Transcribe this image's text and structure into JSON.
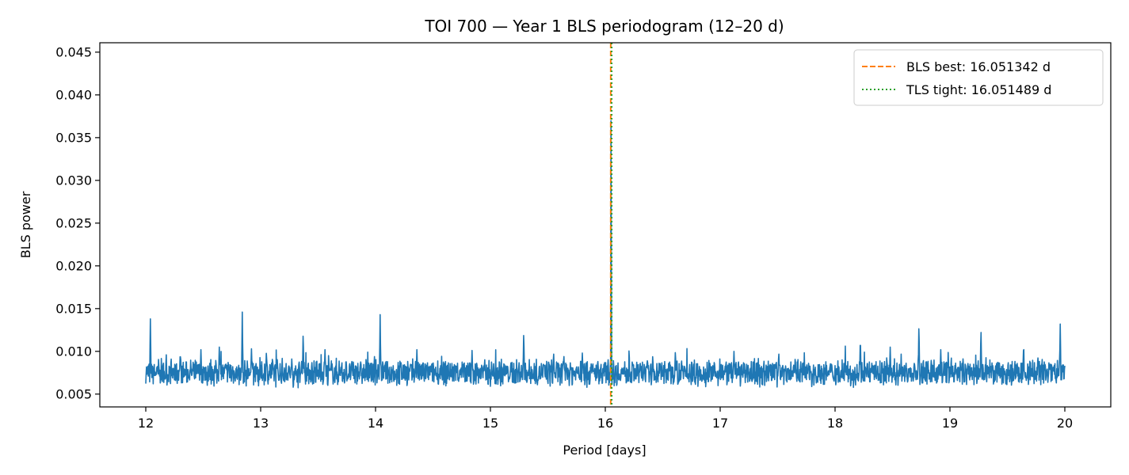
{
  "chart_data": {
    "type": "line",
    "title": "TOI 700 — Year 1 BLS periodogram (12–20 d)",
    "xlabel": "Period [days]",
    "ylabel": "BLS power",
    "xlim": [
      11.6,
      20.4
    ],
    "ylim": [
      0.0035,
      0.0461
    ],
    "xticks": [
      12,
      13,
      14,
      15,
      16,
      17,
      18,
      19,
      20
    ],
    "yticks": [
      0.005,
      0.01,
      0.015,
      0.02,
      0.025,
      0.03,
      0.035,
      0.04,
      0.045
    ],
    "ytick_labels": [
      "0.005",
      "0.010",
      "0.015",
      "0.020",
      "0.025",
      "0.030",
      "0.035",
      "0.040",
      "0.045"
    ],
    "grid": false,
    "legend_position": "top-right",
    "series": [
      {
        "name": "",
        "color": "#1f77b4",
        "x_range": [
          12,
          20
        ],
        "baseline": 0.0075,
        "noise_amplitude": 0.0015,
        "peaks": [
          {
            "x": 12.04,
            "y": 0.0138
          },
          {
            "x": 12.3,
            "y": 0.01
          },
          {
            "x": 12.48,
            "y": 0.0102
          },
          {
            "x": 12.64,
            "y": 0.0105
          },
          {
            "x": 12.84,
            "y": 0.0146
          },
          {
            "x": 12.92,
            "y": 0.0103
          },
          {
            "x": 13.05,
            "y": 0.0101
          },
          {
            "x": 13.37,
            "y": 0.0124
          },
          {
            "x": 13.56,
            "y": 0.0102
          },
          {
            "x": 14.04,
            "y": 0.0143
          },
          {
            "x": 14.36,
            "y": 0.0102
          },
          {
            "x": 14.84,
            "y": 0.0101
          },
          {
            "x": 15.29,
            "y": 0.0125
          },
          {
            "x": 15.55,
            "y": 0.01
          },
          {
            "x": 15.8,
            "y": 0.0098
          },
          {
            "x": 16.05,
            "y": 0.044
          },
          {
            "x": 16.61,
            "y": 0.0102
          },
          {
            "x": 17.12,
            "y": 0.01
          },
          {
            "x": 17.51,
            "y": 0.01
          },
          {
            "x": 18.22,
            "y": 0.0118
          },
          {
            "x": 18.48,
            "y": 0.0105
          },
          {
            "x": 18.73,
            "y": 0.0134
          },
          {
            "x": 18.92,
            "y": 0.0102
          },
          {
            "x": 19.27,
            "y": 0.0129
          },
          {
            "x": 19.64,
            "y": 0.0101
          },
          {
            "x": 19.96,
            "y": 0.0132
          }
        ]
      }
    ],
    "vlines": [
      {
        "name": "BLS best: 16.051342 d",
        "x": 16.051342,
        "color": "#ff7f0e",
        "style": "dashed"
      },
      {
        "name": "TLS tight: 16.051489 d",
        "x": 16.051489,
        "color": "#2ca02c",
        "style": "dotted"
      }
    ]
  }
}
